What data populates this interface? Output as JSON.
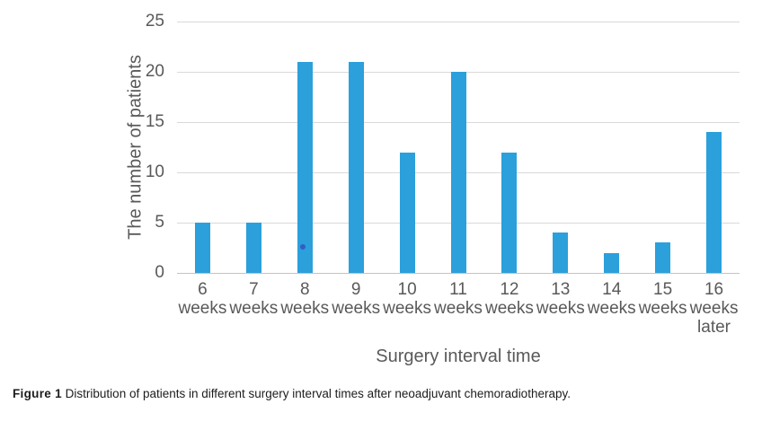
{
  "chart_data": {
    "type": "bar",
    "categories": [
      "6 weeks",
      "7 weeks",
      "8 weeks",
      "9 weeks",
      "10 weeks",
      "11 weeks",
      "12 weeks",
      "13 weeks",
      "14 weeks",
      "15 weeks",
      "16 weeks later"
    ],
    "values": [
      5,
      5,
      21,
      21,
      12,
      20,
      12,
      4,
      2,
      3,
      14
    ],
    "title": "",
    "xlabel": "Surgery interval time",
    "ylabel": "The number of patients",
    "ylim": [
      0,
      25
    ],
    "yticks": [
      0,
      5,
      10,
      15,
      20,
      25
    ],
    "grid": true,
    "legend": "none",
    "bar_color": "#2ba0db"
  },
  "colors": {
    "bar": "#2ba0db",
    "grid": "#d9d9d9",
    "axis_line": "#c3c3c3",
    "text": "#595959",
    "caption_text": "#1c1c1c",
    "stray_dot": "#3b4fc0"
  },
  "caption": {
    "label": "Figure 1",
    "text": " Distribution of patients in different surgery interval times after neoadjuvant chemoradiotherapy."
  }
}
